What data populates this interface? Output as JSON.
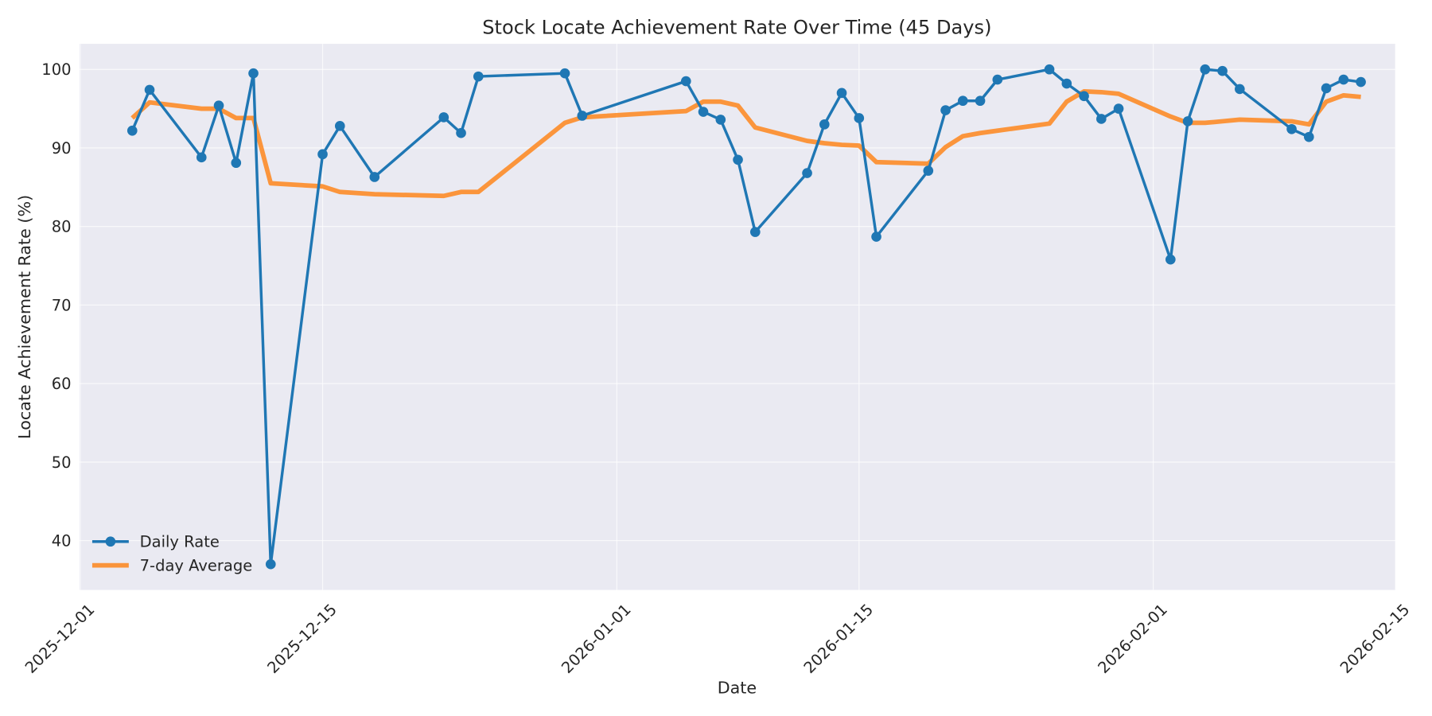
{
  "chart_data": {
    "type": "line",
    "title": "Stock Locate Achievement Rate Over Time (45 Days)",
    "xlabel": "Date",
    "ylabel": "Locate Achievement Rate (%)",
    "ylim": [
      34,
      103
    ],
    "xlim": [
      "2025-11-30",
      "2026-02-15"
    ],
    "grid": true,
    "legend_position": "lower left",
    "x_ticks": [
      "2025-12-01",
      "2025-12-15",
      "2026-01-01",
      "2026-01-15",
      "2026-02-01",
      "2026-02-15"
    ],
    "y_ticks": [
      40,
      50,
      60,
      70,
      80,
      90,
      100
    ],
    "colors": {
      "daily": "#1f77b4",
      "avg": "#ff7f0e",
      "background": "#eaeaf2"
    },
    "x": [
      "2025-12-04",
      "2025-12-05",
      "2025-12-08",
      "2025-12-09",
      "2025-12-10",
      "2025-12-11",
      "2025-12-12",
      "2025-12-15",
      "2025-12-16",
      "2025-12-18",
      "2025-12-22",
      "2025-12-23",
      "2025-12-24",
      "2025-12-29",
      "2025-12-30",
      "2026-01-05",
      "2026-01-06",
      "2026-01-07",
      "2026-01-08",
      "2026-01-09",
      "2026-01-12",
      "2026-01-13",
      "2026-01-14",
      "2026-01-15",
      "2026-01-16",
      "2026-01-19",
      "2026-01-20",
      "2026-01-21",
      "2026-01-22",
      "2026-01-23",
      "2026-01-26",
      "2026-01-27",
      "2026-01-28",
      "2026-01-29",
      "2026-01-30",
      "2026-02-02",
      "2026-02-03",
      "2026-02-04",
      "2026-02-05",
      "2026-02-06",
      "2026-02-09",
      "2026-02-10",
      "2026-02-11",
      "2026-02-12",
      "2026-02-13"
    ],
    "series": [
      {
        "name": "Daily Rate",
        "values": [
          92.2,
          97.4,
          88.8,
          95.4,
          88.1,
          99.5,
          37.0,
          89.2,
          92.8,
          86.3,
          93.9,
          91.9,
          99.1,
          99.5,
          94.1,
          98.5,
          94.6,
          93.6,
          88.5,
          79.3,
          86.8,
          93.0,
          97.0,
          93.8,
          78.7,
          87.1,
          94.8,
          96.0,
          96.0,
          98.7,
          100.0,
          98.2,
          96.6,
          93.7,
          95.0,
          75.8,
          93.4,
          100.0,
          99.8,
          97.5,
          92.4,
          91.4,
          97.6,
          98.7,
          98.4
        ]
      },
      {
        "name": "7-day Average",
        "values": [
          93.8,
          95.8,
          95.0,
          95.0,
          93.8,
          93.8,
          85.5,
          85.1,
          84.4,
          84.1,
          83.9,
          84.4,
          84.4,
          93.2,
          93.9,
          94.7,
          95.9,
          95.9,
          95.4,
          92.6,
          90.9,
          90.6,
          90.4,
          90.3,
          88.2,
          88.0,
          90.1,
          91.5,
          91.9,
          92.2,
          93.1,
          95.9,
          97.2,
          97.1,
          96.9,
          94.0,
          93.2,
          93.2,
          93.4,
          93.6,
          93.4,
          93.0,
          95.9,
          96.7,
          96.5
        ]
      }
    ]
  },
  "legend": {
    "daily": "Daily Rate",
    "avg": "7-day Average"
  }
}
